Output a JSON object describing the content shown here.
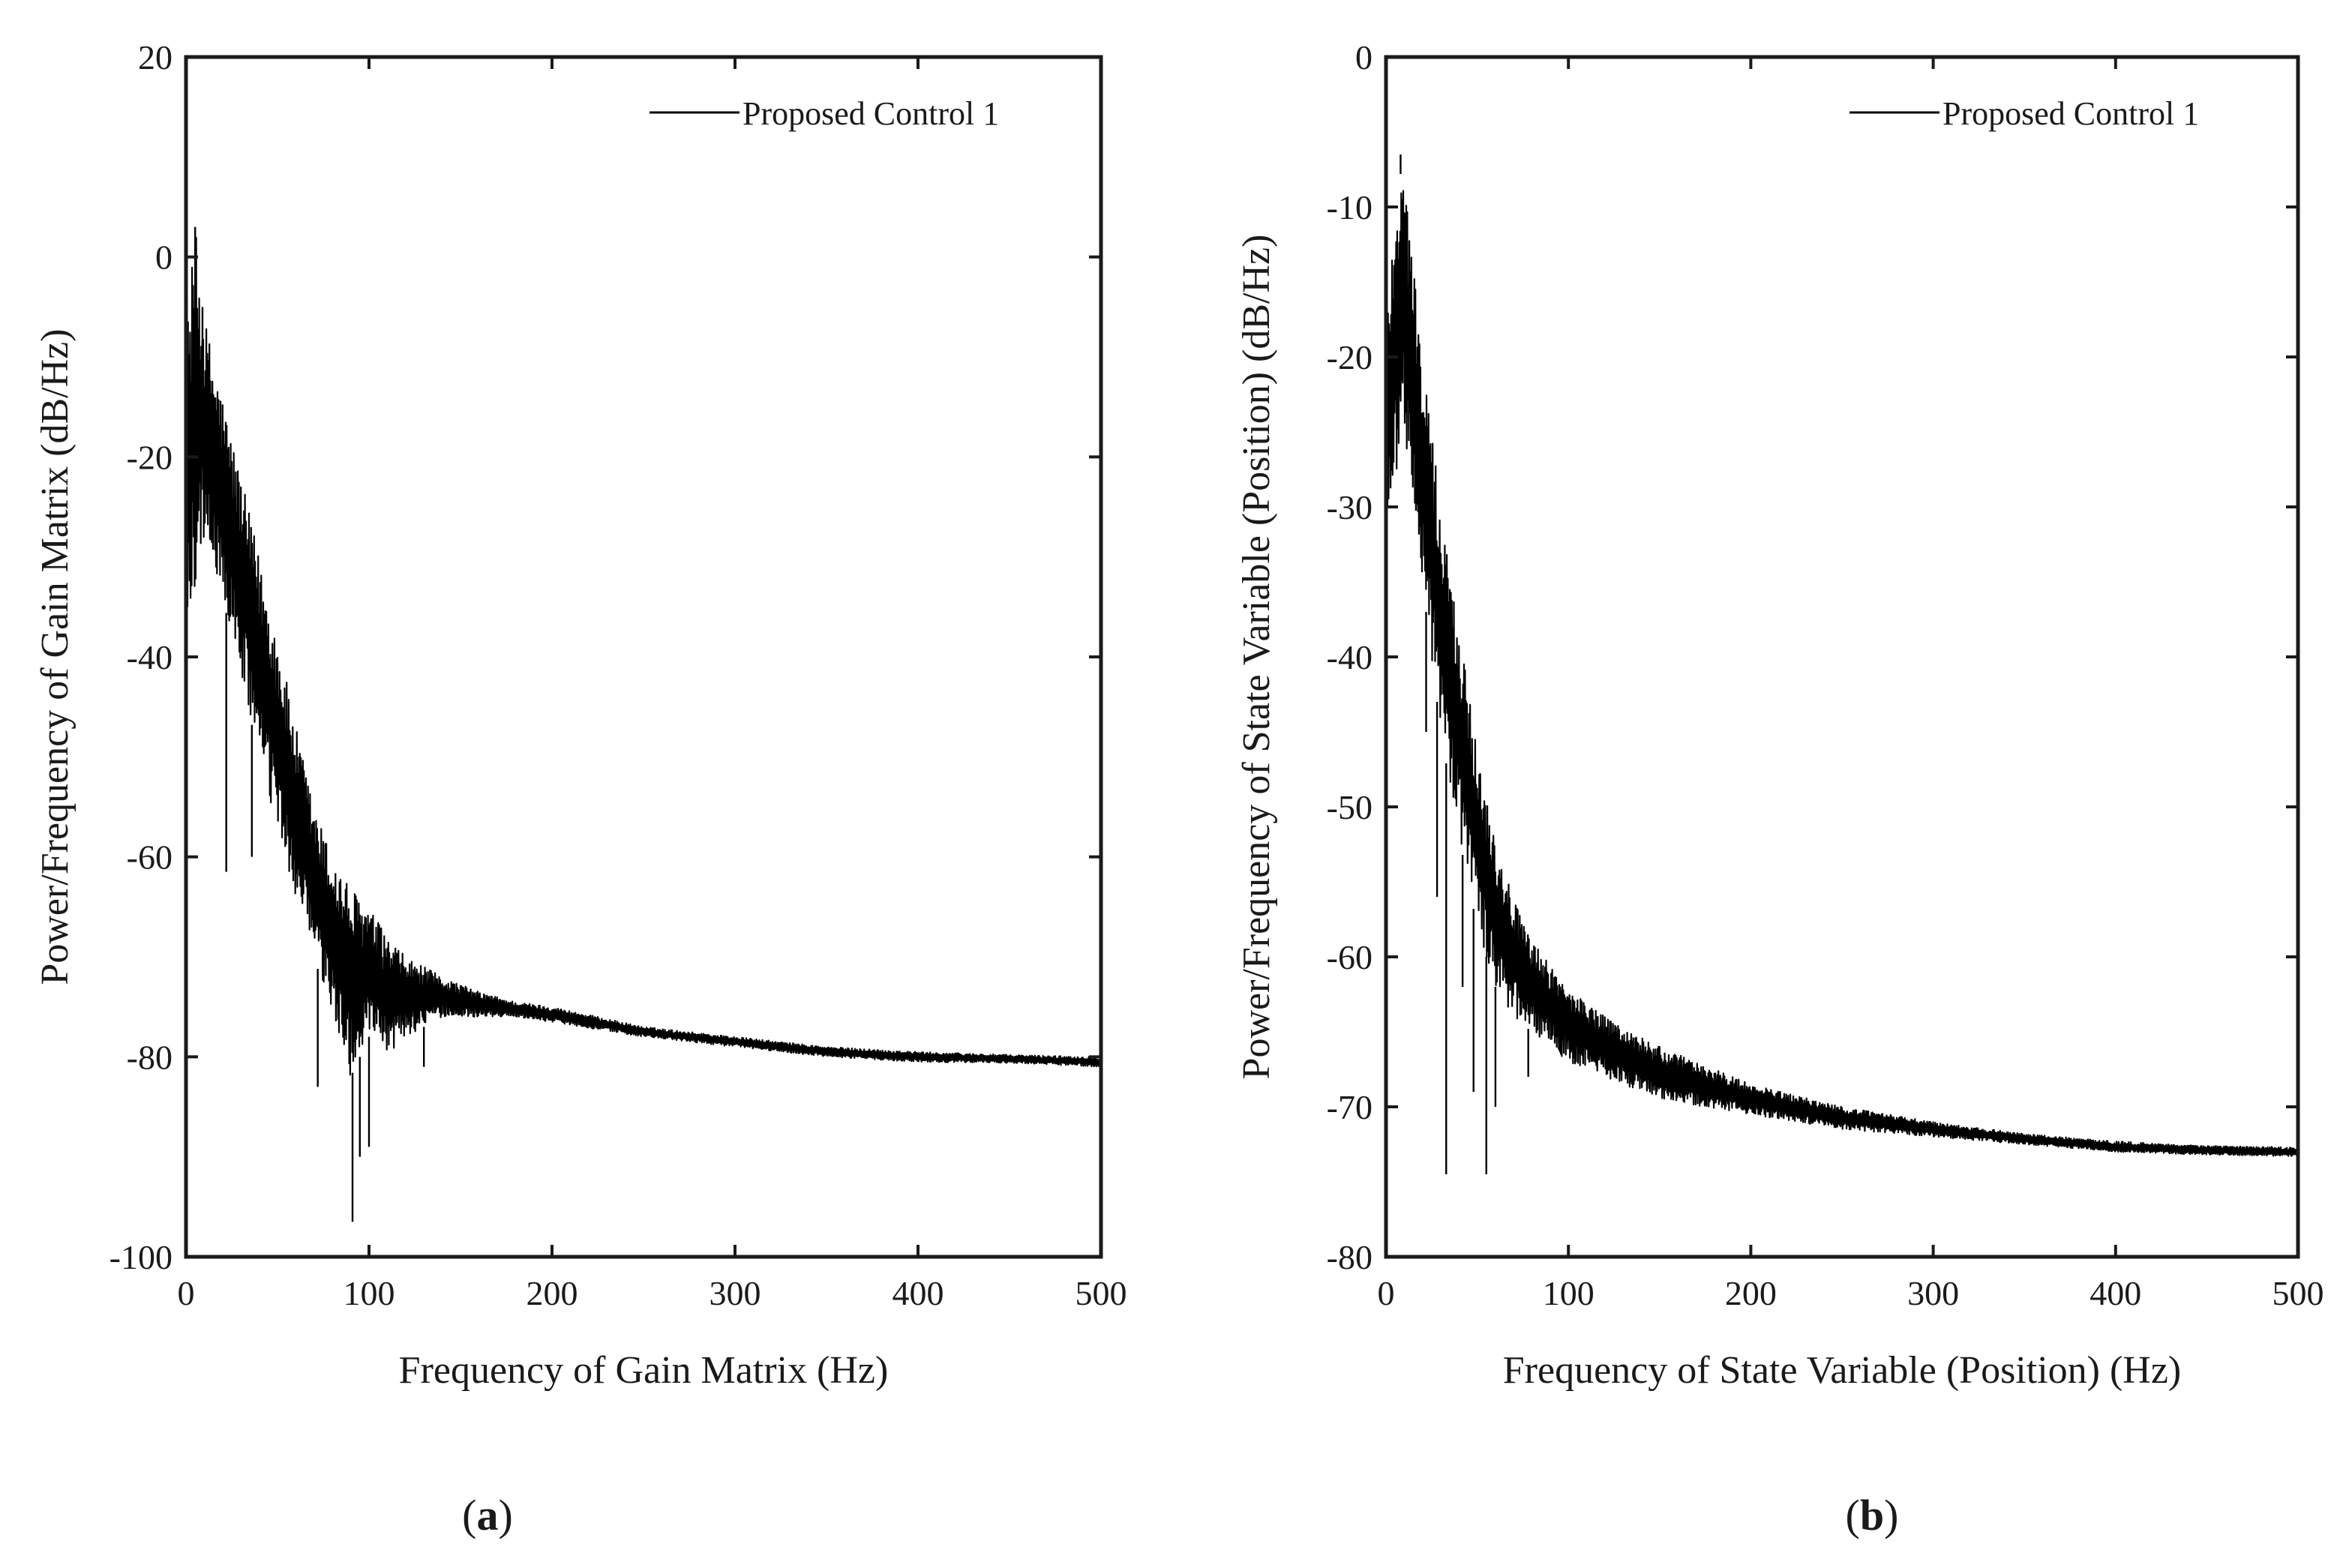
{
  "chart_data": [
    {
      "type": "line",
      "panel_label": "(a)",
      "panel_letter": "a",
      "xlabel": "Frequency of Gain Matrix (Hz)",
      "ylabel": "Power/Frequency of Gain Matrix (dB/Hz)",
      "xlim": [
        0,
        500
      ],
      "ylim": [
        -100,
        20
      ],
      "xticks": [
        0,
        100,
        200,
        300,
        400,
        500
      ],
      "yticks": [
        20,
        0,
        -20,
        -40,
        -60,
        -80,
        -100
      ],
      "xtick_labels": [
        "0",
        "100",
        "200",
        "300",
        "400",
        "500"
      ],
      "ytick_labels": [
        "20",
        "0",
        "-20",
        "-40",
        "-60",
        "-80",
        "-100"
      ],
      "grid": false,
      "legend": {
        "entries": [
          "Proposed Control 1"
        ],
        "placement": "top-right"
      },
      "series": [
        {
          "name": "Proposed Control 1",
          "color": "#000000",
          "envelope_x": [
            0,
            5,
            10,
            20,
            30,
            40,
            50,
            60,
            70,
            80,
            90,
            100,
            110,
            120,
            140,
            160,
            180,
            200,
            250,
            300,
            350,
            400,
            450,
            500
          ],
          "envelope_upper": [
            -8,
            3,
            -6,
            -14,
            -22,
            -30,
            -38,
            -47,
            -55,
            -60,
            -63,
            -65,
            -68,
            -70,
            -72,
            -73.5,
            -74.5,
            -75,
            -77,
            -78,
            -79,
            -79.5,
            -79.8,
            -80
          ],
          "envelope_lower": [
            -40,
            -33,
            -28,
            -34,
            -42,
            -50,
            -58,
            -64,
            -70,
            -76,
            -82,
            -78,
            -80,
            -78,
            -76,
            -76,
            -76,
            -76.5,
            -78,
            -79,
            -80,
            -80.5,
            -80.6,
            -81
          ],
          "spikes": [
            [
              5,
              3
            ],
            [
              9,
              -5
            ],
            [
              22,
              -61.5
            ],
            [
              36,
              -60
            ],
            [
              72,
              -83
            ],
            [
              91,
              -96.5
            ],
            [
              95,
              -90
            ],
            [
              100,
              -89
            ],
            [
              130,
              -81
            ]
          ]
        }
      ]
    },
    {
      "type": "line",
      "panel_label": "(b)",
      "panel_letter": "b",
      "xlabel": "Frequency of State Variable (Position) (Hz)",
      "ylabel": "Power/Frequency of State Variable (Position) (dB/Hz)",
      "xlim": [
        0,
        500
      ],
      "ylim": [
        -80,
        0
      ],
      "xticks": [
        0,
        100,
        200,
        300,
        400,
        500
      ],
      "yticks": [
        0,
        -10,
        -20,
        -30,
        -40,
        -50,
        -60,
        -70,
        -80
      ],
      "xtick_labels": [
        "0",
        "100",
        "200",
        "300",
        "400",
        "500"
      ],
      "ytick_labels": [
        "0",
        "-10",
        "-20",
        "-30",
        "-40",
        "-50",
        "-60",
        "-70",
        "-80"
      ],
      "grid": false,
      "legend": {
        "entries": [
          "Proposed Control 1"
        ],
        "placement": "top-right"
      },
      "series": [
        {
          "name": "Proposed Control 1",
          "color": "#000000",
          "envelope_x": [
            0,
            5,
            10,
            20,
            30,
            40,
            50,
            60,
            70,
            80,
            100,
            120,
            150,
            200,
            250,
            300,
            350,
            400,
            450,
            500
          ],
          "envelope_upper": [
            -18,
            -9,
            -7,
            -20,
            -30,
            -38,
            -46,
            -52,
            -56,
            -59,
            -62,
            -64,
            -66,
            -68.5,
            -70,
            -71,
            -71.8,
            -72.3,
            -72.6,
            -72.7
          ],
          "envelope_lower": [
            -32,
            -28,
            -25,
            -35,
            -45,
            -52,
            -58,
            -62,
            -64,
            -65,
            -67,
            -68,
            -69.5,
            -70.5,
            -71.5,
            -72,
            -72.5,
            -73,
            -73.2,
            -73.3
          ],
          "spikes": [
            [
              8,
              -6.5
            ],
            [
              22,
              -45
            ],
            [
              28,
              -56
            ],
            [
              33,
              -74.5
            ],
            [
              42,
              -62
            ],
            [
              48,
              -69
            ],
            [
              55,
              -74.5
            ],
            [
              60,
              -70
            ],
            [
              78,
              -68
            ]
          ]
        }
      ]
    }
  ]
}
